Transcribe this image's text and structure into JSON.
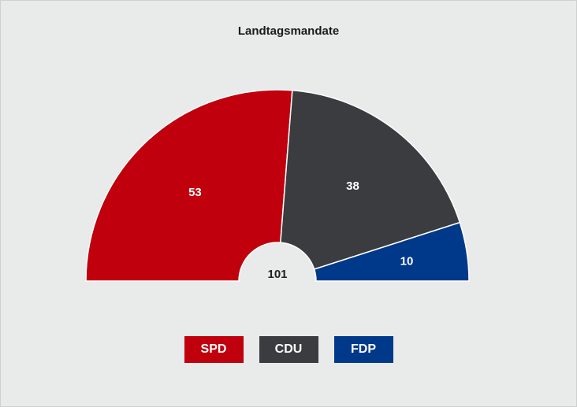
{
  "chart_data": {
    "type": "pie",
    "title": "Landtagsmandate",
    "total": "101",
    "slices": [
      {
        "name": "SPD",
        "value": 53,
        "color": "#c0000d"
      },
      {
        "name": "CDU",
        "value": 38,
        "color": "#3b3c3f"
      },
      {
        "name": "FDP",
        "value": 10,
        "color": "#00398a"
      }
    ],
    "legend": [
      {
        "label": "SPD",
        "color": "#c0000d"
      },
      {
        "label": "CDU",
        "color": "#3b3c3f"
      },
      {
        "label": "FDP",
        "color": "#00398a"
      }
    ]
  }
}
